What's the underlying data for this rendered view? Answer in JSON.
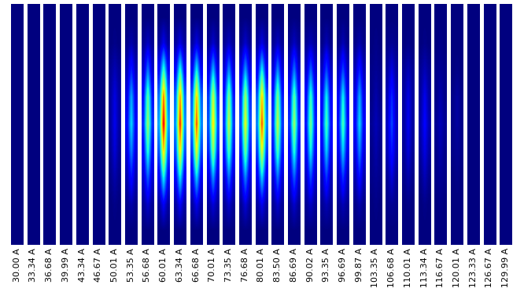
{
  "chart_data": {
    "type": "heatmap_panels",
    "tick_labels": "x",
    "zlim": [
      0,
      1
    ],
    "categories": [
      "30.00 A",
      "33.34 A",
      "36.68 A",
      "39.99 A",
      "43.34 A",
      "46.67 A",
      "50.01 A",
      "53.35 A",
      "56.68 A",
      "60.01 A",
      "63.34 A",
      "66.68 A",
      "70.01 A",
      "73.35 A",
      "76.68 A",
      "80.01 A",
      "83.50 A",
      "86.69 A",
      "90.02 A",
      "93.35 A",
      "96.69 A",
      "99.87 A",
      "103.35 A",
      "106.68 A",
      "110.01 A",
      "113.34 A",
      "116.67 A",
      "120.01 A",
      "123.33 A",
      "126.67 A",
      "129.99 A"
    ],
    "cells": [
      [
        [
          0,
          0,
          0
        ],
        [
          0,
          0,
          0
        ],
        [
          0,
          0,
          0
        ],
        [
          0,
          0,
          0
        ],
        [
          0,
          0,
          0
        ],
        [
          0,
          0,
          0
        ],
        [
          0,
          0,
          0
        ],
        [
          0,
          0,
          0
        ],
        [
          0,
          0,
          0
        ]
      ],
      [
        [
          0,
          0,
          0
        ],
        [
          0,
          0,
          0
        ],
        [
          0,
          0,
          0
        ],
        [
          0,
          0,
          0
        ],
        [
          0,
          0,
          0
        ],
        [
          0,
          0,
          0
        ],
        [
          0,
          0,
          0
        ],
        [
          0,
          0,
          0
        ],
        [
          0,
          0,
          0
        ]
      ],
      [
        [
          0,
          0,
          0
        ],
        [
          0,
          0,
          0
        ],
        [
          0,
          0,
          0
        ],
        [
          0,
          0,
          0
        ],
        [
          0,
          0,
          0
        ],
        [
          0,
          0,
          0
        ],
        [
          0,
          0,
          0
        ],
        [
          0,
          0,
          0
        ],
        [
          0,
          0,
          0
        ]
      ],
      [
        [
          0,
          0,
          0
        ],
        [
          0,
          0,
          0
        ],
        [
          0,
          0,
          0
        ],
        [
          0,
          0,
          0
        ],
        [
          0,
          0,
          0
        ],
        [
          0,
          0,
          0
        ],
        [
          0,
          0,
          0
        ],
        [
          0,
          0,
          0
        ],
        [
          0,
          0,
          0
        ]
      ],
      [
        [
          0,
          0,
          0
        ],
        [
          0,
          0,
          0
        ],
        [
          0,
          0,
          0
        ],
        [
          0,
          0,
          0
        ],
        [
          0,
          0,
          0
        ],
        [
          0,
          0,
          0
        ],
        [
          0,
          0,
          0
        ],
        [
          0,
          0,
          0
        ],
        [
          0,
          0,
          0
        ]
      ],
      [
        [
          0,
          0,
          0
        ],
        [
          0,
          0,
          0
        ],
        [
          0,
          0,
          0
        ],
        [
          0,
          0,
          0
        ],
        [
          0,
          0,
          0
        ],
        [
          0,
          0,
          0
        ],
        [
          0,
          0,
          0
        ],
        [
          0,
          0,
          0
        ],
        [
          0,
          0,
          0
        ]
      ],
      [
        [
          0,
          0,
          0
        ],
        [
          0,
          0.01,
          0
        ],
        [
          0.02,
          0.05,
          0.02
        ],
        [
          0.03,
          0.09,
          0.03
        ],
        [
          0.03,
          0.1,
          0.03
        ],
        [
          0.02,
          0.08,
          0.02
        ],
        [
          0.01,
          0.04,
          0.01
        ],
        [
          0,
          0.01,
          0
        ],
        [
          0,
          0,
          0
        ]
      ],
      [
        [
          0,
          0,
          0
        ],
        [
          0.01,
          0.04,
          0.01
        ],
        [
          0.05,
          0.16,
          0.05
        ],
        [
          0.09,
          0.3,
          0.09
        ],
        [
          0.11,
          0.35,
          0.11
        ],
        [
          0.08,
          0.26,
          0.08
        ],
        [
          0.04,
          0.14,
          0.04
        ],
        [
          0.01,
          0.04,
          0.01
        ],
        [
          0,
          0,
          0
        ]
      ],
      [
        [
          0,
          0,
          0
        ],
        [
          0.02,
          0.06,
          0.02
        ],
        [
          0.07,
          0.25,
          0.07
        ],
        [
          0.14,
          0.47,
          0.14
        ],
        [
          0.17,
          0.55,
          0.17
        ],
        [
          0.12,
          0.41,
          0.12
        ],
        [
          0.07,
          0.22,
          0.07
        ],
        [
          0.02,
          0.07,
          0.02
        ],
        [
          0,
          0,
          0
        ]
      ],
      [
        [
          0,
          0,
          0
        ],
        [
          0.03,
          0.1,
          0.03
        ],
        [
          0.13,
          0.43,
          0.13
        ],
        [
          0.24,
          0.81,
          0.24
        ],
        [
          0.29,
          0.95,
          0.29
        ],
        [
          0.21,
          0.71,
          0.21
        ],
        [
          0.11,
          0.38,
          0.11
        ],
        [
          0.03,
          0.11,
          0.03
        ],
        [
          0,
          0,
          0
        ]
      ],
      [
        [
          0,
          0,
          0
        ],
        [
          0.03,
          0.09,
          0.03
        ],
        [
          0.12,
          0.41,
          0.12
        ],
        [
          0.23,
          0.77,
          0.23
        ],
        [
          0.27,
          0.9,
          0.27
        ],
        [
          0.2,
          0.68,
          0.2
        ],
        [
          0.11,
          0.36,
          0.11
        ],
        [
          0.03,
          0.11,
          0.03
        ],
        [
          0,
          0,
          0
        ]
      ],
      [
        [
          0,
          0,
          0
        ],
        [
          0.03,
          0.09,
          0.03
        ],
        [
          0.11,
          0.38,
          0.11
        ],
        [
          0.22,
          0.72,
          0.22
        ],
        [
          0.26,
          0.85,
          0.26
        ],
        [
          0.19,
          0.64,
          0.19
        ],
        [
          0.1,
          0.34,
          0.1
        ],
        [
          0.03,
          0.1,
          0.03
        ],
        [
          0,
          0,
          0
        ]
      ],
      [
        [
          0,
          0,
          0
        ],
        [
          0.02,
          0.07,
          0.02
        ],
        [
          0.09,
          0.32,
          0.09
        ],
        [
          0.18,
          0.6,
          0.18
        ],
        [
          0.21,
          0.7,
          0.21
        ],
        [
          0.16,
          0.53,
          0.16
        ],
        [
          0.08,
          0.28,
          0.08
        ],
        [
          0.03,
          0.08,
          0.03
        ],
        [
          0,
          0,
          0
        ]
      ],
      [
        [
          0,
          0,
          0
        ],
        [
          0.02,
          0.06,
          0.02
        ],
        [
          0.08,
          0.27,
          0.08
        ],
        [
          0.15,
          0.51,
          0.15
        ],
        [
          0.18,
          0.6,
          0.18
        ],
        [
          0.14,
          0.45,
          0.14
        ],
        [
          0.07,
          0.24,
          0.07
        ],
        [
          0.02,
          0.07,
          0.02
        ],
        [
          0,
          0,
          0
        ]
      ],
      [
        [
          0,
          0,
          0
        ],
        [
          0.02,
          0.07,
          0.02
        ],
        [
          0.09,
          0.29,
          0.09
        ],
        [
          0.17,
          0.55,
          0.17
        ],
        [
          0.2,
          0.65,
          0.2
        ],
        [
          0.15,
          0.49,
          0.15
        ],
        [
          0.08,
          0.26,
          0.08
        ],
        [
          0.02,
          0.08,
          0.02
        ],
        [
          0,
          0,
          0
        ]
      ],
      [
        [
          0,
          0,
          0
        ],
        [
          0.03,
          0.09,
          0.03
        ],
        [
          0.11,
          0.38,
          0.11
        ],
        [
          0.22,
          0.72,
          0.22
        ],
        [
          0.26,
          0.85,
          0.26
        ],
        [
          0.19,
          0.64,
          0.19
        ],
        [
          0.1,
          0.34,
          0.1
        ],
        [
          0.03,
          0.1,
          0.03
        ],
        [
          0,
          0,
          0
        ]
      ],
      [
        [
          0,
          0,
          0
        ],
        [
          0.02,
          0.06,
          0.02
        ],
        [
          0.08,
          0.27,
          0.08
        ],
        [
          0.15,
          0.51,
          0.15
        ],
        [
          0.18,
          0.6,
          0.18
        ],
        [
          0.14,
          0.45,
          0.14
        ],
        [
          0.07,
          0.24,
          0.07
        ],
        [
          0.02,
          0.07,
          0.02
        ],
        [
          0,
          0,
          0
        ]
      ],
      [
        [
          0,
          0,
          0
        ],
        [
          0.02,
          0.06,
          0.02
        ],
        [
          0.07,
          0.25,
          0.07
        ],
        [
          0.14,
          0.47,
          0.14
        ],
        [
          0.17,
          0.55,
          0.17
        ],
        [
          0.12,
          0.41,
          0.12
        ],
        [
          0.07,
          0.22,
          0.07
        ],
        [
          0.02,
          0.07,
          0.02
        ],
        [
          0,
          0,
          0
        ]
      ],
      [
        [
          0,
          0,
          0
        ],
        [
          0.02,
          0.05,
          0.02
        ],
        [
          0.07,
          0.23,
          0.07
        ],
        [
          0.13,
          0.43,
          0.13
        ],
        [
          0.15,
          0.5,
          0.15
        ],
        [
          0.11,
          0.38,
          0.11
        ],
        [
          0.06,
          0.2,
          0.06
        ],
        [
          0.02,
          0.06,
          0.02
        ],
        [
          0,
          0,
          0
        ]
      ],
      [
        [
          0,
          0,
          0
        ],
        [
          0.01,
          0.05,
          0.01
        ],
        [
          0.06,
          0.2,
          0.06
        ],
        [
          0.11,
          0.38,
          0.11
        ],
        [
          0.14,
          0.45,
          0.14
        ],
        [
          0.1,
          0.34,
          0.1
        ],
        [
          0.05,
          0.18,
          0.05
        ],
        [
          0.02,
          0.05,
          0.02
        ],
        [
          0,
          0,
          0
        ]
      ],
      [
        [
          0,
          0,
          0
        ],
        [
          0.01,
          0.05,
          0.01
        ],
        [
          0.06,
          0.2,
          0.06
        ],
        [
          0.11,
          0.38,
          0.11
        ],
        [
          0.14,
          0.45,
          0.14
        ],
        [
          0.1,
          0.34,
          0.1
        ],
        [
          0.05,
          0.18,
          0.05
        ],
        [
          0.02,
          0.05,
          0.02
        ],
        [
          0,
          0,
          0
        ]
      ],
      [
        [
          0,
          0,
          0
        ],
        [
          0.01,
          0.04,
          0.01
        ],
        [
          0.05,
          0.16,
          0.05
        ],
        [
          0.09,
          0.3,
          0.09
        ],
        [
          0.11,
          0.35,
          0.11
        ],
        [
          0.08,
          0.26,
          0.08
        ],
        [
          0.04,
          0.14,
          0.04
        ],
        [
          0.01,
          0.04,
          0.01
        ],
        [
          0,
          0,
          0
        ]
      ],
      [
        [
          0,
          0,
          0
        ],
        [
          0,
          0.01,
          0
        ],
        [
          0.01,
          0.02,
          0.01
        ],
        [
          0.01,
          0.04,
          0.01
        ],
        [
          0.02,
          0.05,
          0.02
        ],
        [
          0.01,
          0.04,
          0.01
        ],
        [
          0.01,
          0.02,
          0.01
        ],
        [
          0,
          0.01,
          0
        ],
        [
          0,
          0,
          0
        ]
      ],
      [
        [
          0,
          0,
          0
        ],
        [
          0.01,
          0.02,
          0.01
        ],
        [
          0.03,
          0.09,
          0.03
        ],
        [
          0.05,
          0.17,
          0.05
        ],
        [
          0.06,
          0.2,
          0.06
        ],
        [
          0.05,
          0.15,
          0.05
        ],
        [
          0.02,
          0.08,
          0.02
        ],
        [
          0.01,
          0.02,
          0.01
        ],
        [
          0,
          0,
          0
        ]
      ],
      [
        [
          0,
          0,
          0
        ],
        [
          0,
          0.01,
          0
        ],
        [
          0.02,
          0.05,
          0.02
        ],
        [
          0.03,
          0.09,
          0.03
        ],
        [
          0.03,
          0.1,
          0.03
        ],
        [
          0.02,
          0.08,
          0.02
        ],
        [
          0.01,
          0.04,
          0.01
        ],
        [
          0,
          0.01,
          0
        ],
        [
          0,
          0,
          0
        ]
      ],
      [
        [
          0,
          0,
          0
        ],
        [
          0,
          0.01,
          0
        ],
        [
          0.02,
          0.05,
          0.02
        ],
        [
          0.03,
          0.1,
          0.03
        ],
        [
          0.04,
          0.12,
          0.04
        ],
        [
          0.03,
          0.09,
          0.03
        ],
        [
          0.01,
          0.05,
          0.01
        ],
        [
          0,
          0.01,
          0
        ],
        [
          0,
          0,
          0
        ]
      ],
      [
        [
          0,
          0,
          0
        ],
        [
          0,
          0.01,
          0
        ],
        [
          0.01,
          0.02,
          0.01
        ],
        [
          0.01,
          0.04,
          0.01
        ],
        [
          0.02,
          0.05,
          0.02
        ],
        [
          0.01,
          0.04,
          0.01
        ],
        [
          0.01,
          0.02,
          0.01
        ],
        [
          0,
          0.01,
          0
        ],
        [
          0,
          0,
          0
        ]
      ],
      [
        [
          0,
          0,
          0
        ],
        [
          0,
          0,
          0
        ],
        [
          0,
          0.01,
          0
        ],
        [
          0.01,
          0.03,
          0.01
        ],
        [
          0.01,
          0.03,
          0.01
        ],
        [
          0.01,
          0.02,
          0.01
        ],
        [
          0,
          0.01,
          0
        ],
        [
          0,
          0,
          0
        ],
        [
          0,
          0,
          0
        ]
      ],
      [
        [
          0,
          0,
          0
        ],
        [
          0,
          0,
          0
        ],
        [
          0,
          0,
          0
        ],
        [
          0,
          0,
          0
        ],
        [
          0,
          0,
          0
        ],
        [
          0,
          0,
          0
        ],
        [
          0,
          0,
          0
        ],
        [
          0,
          0,
          0
        ],
        [
          0,
          0,
          0
        ]
      ],
      [
        [
          0,
          0,
          0
        ],
        [
          0,
          0,
          0
        ],
        [
          0,
          0,
          0
        ],
        [
          0,
          0,
          0
        ],
        [
          0,
          0,
          0
        ],
        [
          0,
          0,
          0
        ],
        [
          0,
          0,
          0
        ],
        [
          0,
          0,
          0
        ],
        [
          0,
          0,
          0
        ]
      ],
      [
        [
          0,
          0,
          0
        ],
        [
          0,
          0,
          0
        ],
        [
          0,
          0,
          0
        ],
        [
          0,
          0,
          0
        ],
        [
          0,
          0,
          0
        ],
        [
          0,
          0,
          0
        ],
        [
          0,
          0,
          0
        ],
        [
          0,
          0,
          0
        ],
        [
          0,
          0,
          0
        ]
      ]
    ]
  }
}
